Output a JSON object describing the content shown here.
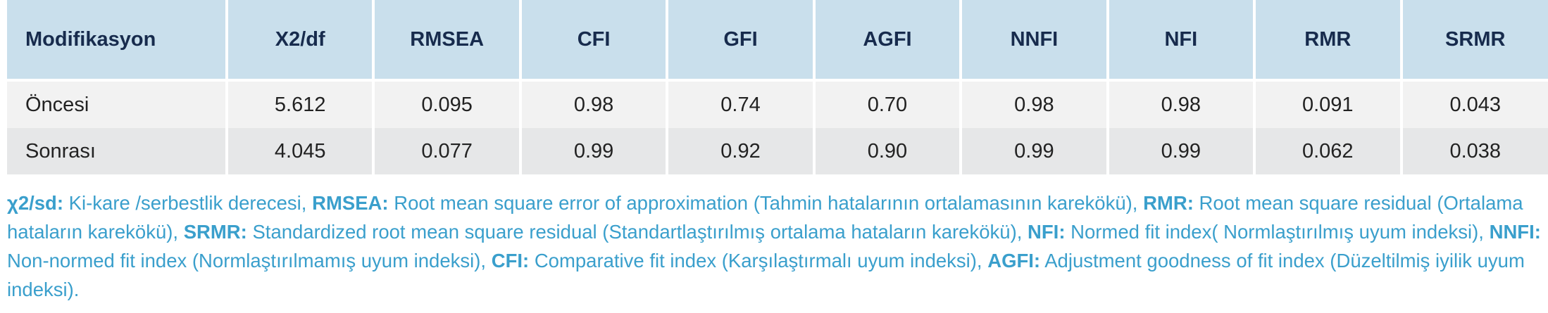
{
  "table": {
    "header": [
      "Modifikasyon",
      "X2/df",
      "RMSEA",
      "CFI",
      "GFI",
      "AGFI",
      "NNFI",
      "NFI",
      "RMR",
      "SRMR"
    ],
    "rows": [
      [
        "Öncesi",
        "5.612",
        "0.095",
        "0.98",
        "0.74",
        "0.70",
        "0.98",
        "0.98",
        "0.091",
        "0.043"
      ],
      [
        "Sonrası",
        "4.045",
        "0.077",
        "0.99",
        "0.92",
        "0.90",
        "0.99",
        "0.99",
        "0.062",
        "0.038"
      ]
    ]
  },
  "footnote": [
    {
      "term": "χ2/sd:",
      "definition": "Ki-kare /serbestlik derecesi,"
    },
    {
      "term": "RMSEA:",
      "definition": "Root mean square error of approximation (Tahmin hatalarının ortalamasının karekökü),"
    },
    {
      "term": "RMR:",
      "definition": "Root mean square residual (Ortalama hataların karekökü),"
    },
    {
      "term": "SRMR:",
      "definition": "Standardized root mean square residual (Standartlaştırılmış ortalama hataların karekökü),"
    },
    {
      "term": "NFI:",
      "definition": "Normed fit index( Normlaştırılmış uyum indeksi),"
    },
    {
      "term": "NNFI:",
      "definition": "Non-normed fit index (Normlaştırılmamış uyum indeksi),"
    },
    {
      "term": "CFI:",
      "definition": "Comparative fit index (Karşılaştırmalı uyum indeksi),"
    },
    {
      "term": "AGFI:",
      "definition": "Adjustment goodness of fit index (Düzeltilmiş iyilik uyum indeksi)."
    }
  ]
}
